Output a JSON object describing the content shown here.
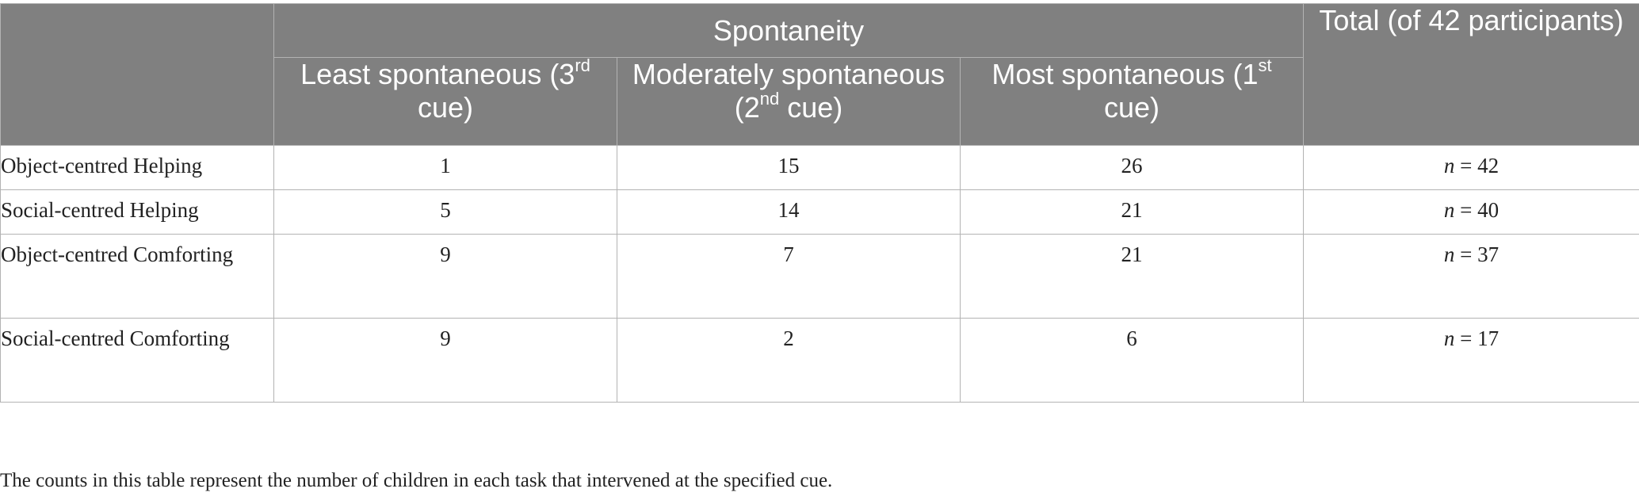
{
  "header": {
    "group_title": "Spontaneity",
    "total_title": "Total (of 42 participants)",
    "columns": [
      {
        "pre": "Least spontaneous (3",
        "sup": "rd",
        "post": " cue)"
      },
      {
        "pre": "Moderately spontaneous (2",
        "sup": "nd",
        "post": " cue)"
      },
      {
        "pre": "Most spontaneous (1",
        "sup": "st",
        "post": " cue)"
      }
    ]
  },
  "rows": [
    {
      "label": "Object-centred Helping",
      "least": "1",
      "moderate": "15",
      "most": "26",
      "n_prefix": "n",
      "total": " = 42"
    },
    {
      "label": "Social-centred Helping",
      "least": "5",
      "moderate": "14",
      "most": "21",
      "n_prefix": "n",
      "total": " = 40"
    },
    {
      "label": "Object-centred Comforting",
      "least": "9",
      "moderate": "7",
      "most": "21",
      "n_prefix": "n",
      "total": " = 37"
    },
    {
      "label": "Social-centred Comforting",
      "least": "9",
      "moderate": "2",
      "most": "6",
      "n_prefix": "n",
      "total": " = 17"
    }
  ],
  "footnote": "The counts in this table represent the number of children in each task that intervened at the specified cue.",
  "colors": {
    "header_bg": "#808080",
    "header_text": "#ffffff",
    "border": "#b3b3b3"
  }
}
